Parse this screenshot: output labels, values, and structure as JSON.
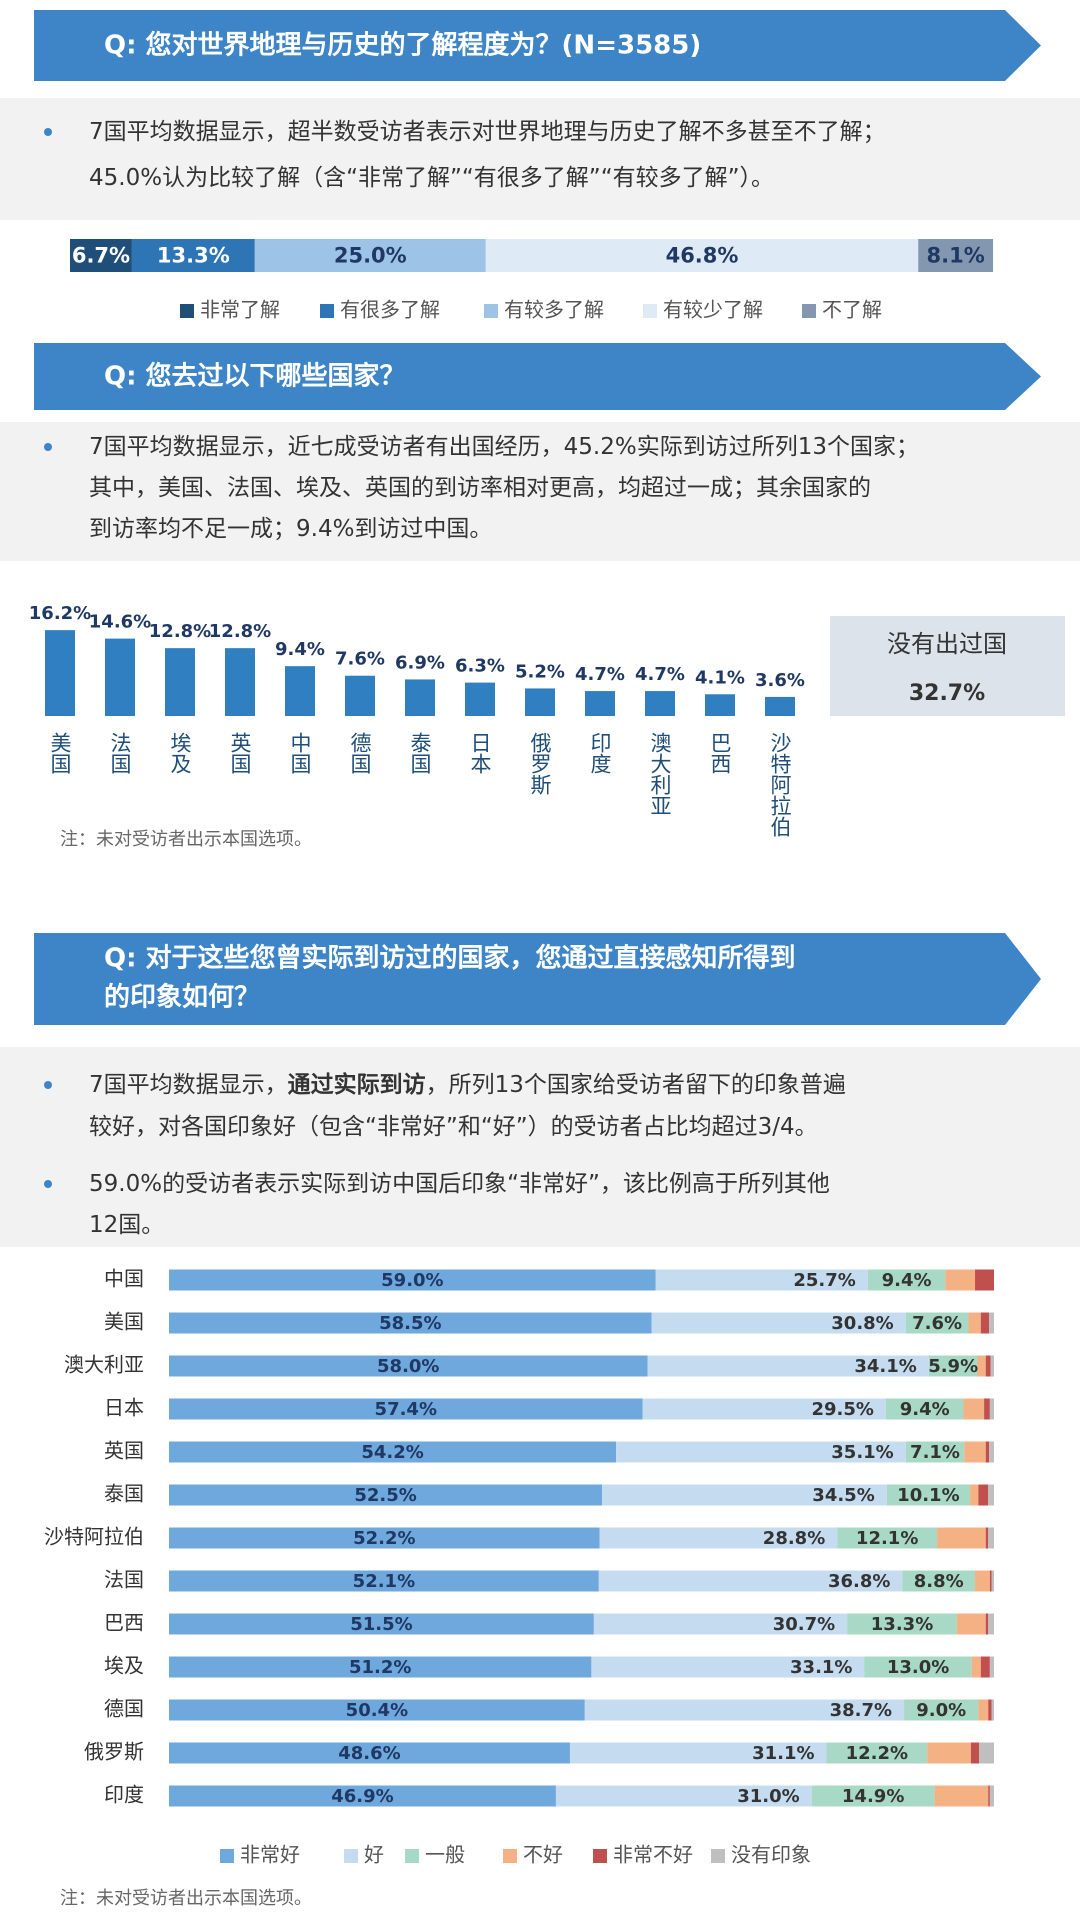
{
  "sections": [
    {
      "question": [
        "Q: 您对世界地理与历史的了解程度为？(N=3585)"
      ],
      "bullets": [
        [
          [
            "7国平均数据显示，超半数受访者表示对世界地理与历史了解不多甚至不了解；"
          ],
          [
            "45.0%认为比较了解（含“非常了解”“有很多了解”“有较多了解”）。"
          ]
        ]
      ]
    },
    {
      "question": [
        "Q: 您去过以下哪些国家？"
      ],
      "bullets": [
        [
          [
            "7国平均数据显示，近七成受访者有出国经历，45.2%实际到访过所列13个国家；"
          ],
          [
            "其中，美国、法国、埃及、英国的到访率相对更高，均超过一成；其余国家的"
          ],
          [
            "到访率均不足一成；9.4%到访过中国。"
          ]
        ]
      ]
    },
    {
      "question": [
        "Q: 对于这些您曾实际到访过的国家，您通过直接感知所得到",
        "的印象如何？"
      ],
      "bullets": [
        [
          [
            "7国平均数据显示，",
            {
              "text": "通过实际到访",
              "bold": true
            },
            "，所列13个国家给受访者留下的印象普遍"
          ],
          [
            "较好，对各国印象好（包含“非常好”和“好”）的受访者占比均超过3/4。"
          ]
        ],
        [
          [
            "59.0%的受访者表示实际到访中国后印象“非常好”，该比例高于所列其他"
          ],
          [
            "12国。"
          ]
        ]
      ]
    }
  ],
  "chart_data": [
    {
      "type": "stacked-hbar",
      "xlim": [
        0,
        100
      ],
      "series": [
        {
          "name": "非常了解",
          "color": "#1f4e79",
          "values": [
            6.7
          ],
          "value_labels": [
            "6.7%"
          ]
        },
        {
          "name": "有很多了解",
          "color": "#2e75b6",
          "values": [
            13.3
          ],
          "value_labels": [
            "13.3%"
          ]
        },
        {
          "name": "有较多了解",
          "color": "#9dc3e6",
          "values": [
            25.0
          ],
          "value_labels": [
            "25.0%"
          ]
        },
        {
          "name": "有较少了解",
          "color": "#deebf7",
          "values": [
            46.8
          ],
          "value_labels": [
            "46.8%"
          ]
        },
        {
          "name": "不了解",
          "color": "#8497b0",
          "values": [
            8.1
          ],
          "value_labels": [
            "8.1%"
          ]
        }
      ]
    },
    {
      "type": "bar",
      "color": "#2f7fc1",
      "ylim": [
        0,
        20
      ],
      "categories": [
        "美国",
        "法国",
        "埃及",
        "英国",
        "中国",
        "德国",
        "泰国",
        "日本",
        "俄罗斯",
        "印度",
        "澳大利亚",
        "巴西",
        "沙特阿拉伯"
      ],
      "values": [
        16.2,
        14.6,
        12.8,
        12.8,
        9.4,
        7.6,
        6.9,
        6.3,
        5.2,
        4.7,
        4.7,
        4.1,
        3.6
      ],
      "value_labels": [
        "16.2%",
        "14.6%",
        "12.8%",
        "12.8%",
        "9.4%",
        "7.6%",
        "6.9%",
        "6.3%",
        "5.2%",
        "4.7%",
        "4.7%",
        "4.1%",
        "3.6%"
      ],
      "side_box": {
        "label": "没有出过国",
        "value": 32.7,
        "value_label": "32.7%"
      },
      "note": "注：未对受访者出示本国选项。"
    },
    {
      "type": "stacked-hbar",
      "xlim": [
        0,
        100
      ],
      "categories": [
        "中国",
        "美国",
        "澳大利亚",
        "日本",
        "英国",
        "泰国",
        "沙特阿拉伯",
        "法国",
        "巴西",
        "埃及",
        "德国",
        "俄罗斯",
        "印度"
      ],
      "series": [
        {
          "name": "非常好",
          "color": "#6fa8dc",
          "values": [
            59.0,
            58.5,
            58.0,
            57.4,
            54.2,
            52.5,
            52.2,
            52.1,
            51.5,
            51.2,
            50.4,
            48.6,
            46.9
          ],
          "value_labels": [
            "59.0%",
            "58.5%",
            "58.0%",
            "57.4%",
            "54.2%",
            "52.5%",
            "52.2%",
            "52.1%",
            "51.5%",
            "51.2%",
            "50.4%",
            "48.6%",
            "46.9%"
          ]
        },
        {
          "name": "好",
          "color": "#c5dcf0",
          "values": [
            25.7,
            30.8,
            34.1,
            29.5,
            35.1,
            34.5,
            28.8,
            36.8,
            30.7,
            33.1,
            38.7,
            31.1,
            31.0
          ],
          "value_labels": [
            "25.7%",
            "30.8%",
            "34.1%",
            "29.5%",
            "35.1%",
            "34.5%",
            "28.8%",
            "36.8%",
            "30.7%",
            "33.1%",
            "38.7%",
            "31.1%",
            "31.0%"
          ]
        },
        {
          "name": "一般",
          "color": "#a8d8c6",
          "values": [
            9.4,
            7.6,
            5.9,
            9.4,
            7.1,
            10.1,
            12.1,
            8.8,
            13.3,
            13.0,
            9.0,
            12.2,
            14.9
          ],
          "value_labels": [
            "9.4%",
            "7.6%",
            "5.9%",
            "9.4%",
            "7.1%",
            "10.1%",
            "12.1%",
            "8.8%",
            "13.3%",
            "13.0%",
            "9.0%",
            "12.2%",
            "14.9%"
          ]
        },
        {
          "name": "不好",
          "color": "#f4b183",
          "values": [
            3.6,
            1.5,
            1.0,
            2.5,
            2.6,
            1.0,
            5.9,
            1.8,
            3.5,
            1.1,
            1.2,
            5.3,
            6.5
          ]
        },
        {
          "name": "非常不好",
          "color": "#c0504d",
          "values": [
            2.3,
            1.0,
            0.6,
            0.7,
            0.4,
            1.2,
            0.3,
            0.2,
            0.3,
            1.1,
            0.4,
            1.0,
            0.2
          ]
        },
        {
          "name": "没有印象",
          "color": "#bfbfbf",
          "values": [
            0,
            0.6,
            0.4,
            0.5,
            0.6,
            0.7,
            0.7,
            0.3,
            0.7,
            0.5,
            0.3,
            1.8,
            0.5
          ]
        }
      ],
      "note": "注：未对受访者出示本国选项。"
    }
  ]
}
